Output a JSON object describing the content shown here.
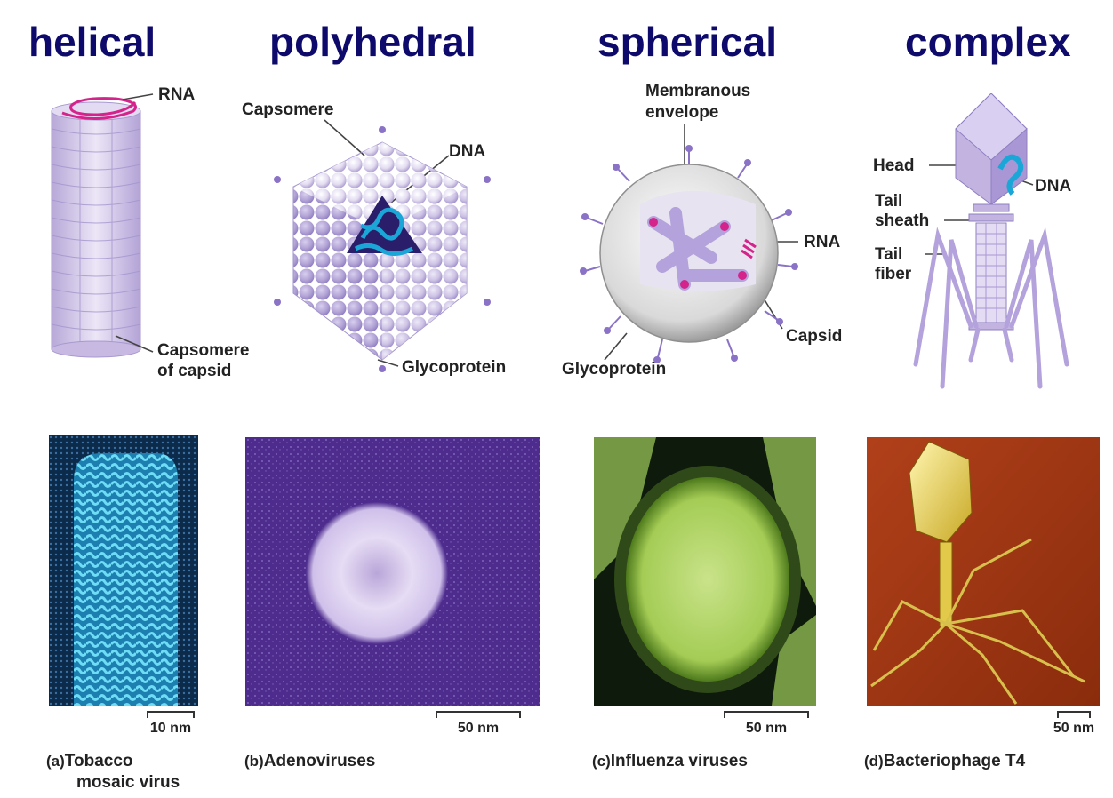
{
  "titles": [
    "helical",
    "polyhedral",
    "spherical",
    "complex"
  ],
  "diagram_labels": {
    "helical": {
      "rna": "RNA",
      "capsomere_of_capsid": [
        "Capsomere",
        "of capsid"
      ]
    },
    "polyhedral": {
      "capsomere": "Capsomere",
      "dna": "DNA",
      "glycoprotein": "Glycoprotein"
    },
    "spherical": {
      "membranous_envelope": [
        "Membranous",
        "envelope"
      ],
      "rna": "RNA",
      "capsid": "Capsid",
      "glycoprotein": "Glycoprotein"
    },
    "complex": {
      "head": "Head",
      "dna": "DNA",
      "tail_sheath": [
        "Tail",
        "sheath"
      ],
      "tail_fiber": [
        "Tail",
        "fiber"
      ]
    }
  },
  "photos": [
    {
      "scale": "10 nm",
      "letter": "(a)",
      "caption": [
        "Tobacco",
        "mosaic virus"
      ]
    },
    {
      "scale": "50 nm",
      "letter": "(b)",
      "caption": [
        "Adenoviruses"
      ]
    },
    {
      "scale": "50 nm",
      "letter": "(c)",
      "caption": [
        "Influenza viruses"
      ]
    },
    {
      "scale": "50 nm",
      "letter": "(d)",
      "caption": [
        "Bacteriophage T4"
      ]
    }
  ],
  "colors": {
    "title": "#0e0a6b",
    "capsid_lavender": "#c9bde3",
    "dna_cyan": "#1aa6d6",
    "rna_magenta": "#d4238a",
    "photo_a_bg": "#0c2a4a",
    "photo_b_bg": "#4e2c8e",
    "photo_c_bg": "#0e1a0c",
    "photo_d_bg": "#9e3412"
  }
}
